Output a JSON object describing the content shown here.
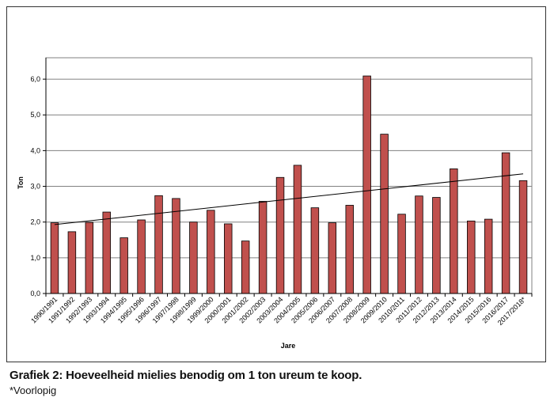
{
  "caption": "Grafiek 2: Hoeveelheid mielies benodig om 1 ton ureum te koop.",
  "note": "*Voorlopig",
  "chart_data": {
    "type": "bar",
    "xlabel": "Jare",
    "ylabel": "Ton",
    "ylim": [
      0,
      6.6
    ],
    "yticks": [
      0,
      1,
      2,
      3,
      4,
      5,
      6
    ],
    "yticklabels": [
      "0,0",
      "1,0",
      "2,0",
      "3,0",
      "4,0",
      "5,0",
      "6,0"
    ],
    "grid": true,
    "categories": [
      "1990/1991",
      "1991/1992",
      "1992/1993",
      "1993/1994",
      "1994/1995",
      "1995/1996",
      "1996/1997",
      "1997/1998",
      "1998/1999",
      "1999/2000",
      "2000/2001",
      "2001/2002",
      "2002/2003",
      "2003/2004",
      "2004/2005",
      "2005/2006",
      "2006/2007",
      "2007/2008",
      "2008/2009",
      "2009/2010",
      "2010/2011",
      "2011/2012",
      "2012/2013",
      "2013/2014",
      "2014/2015",
      "2015/2016",
      "2016/2017",
      "2017/2018*"
    ],
    "values": [
      1.98,
      1.73,
      1.99,
      2.28,
      1.56,
      2.06,
      2.74,
      2.66,
      2.0,
      2.33,
      1.95,
      1.47,
      2.58,
      3.25,
      3.59,
      2.4,
      1.98,
      2.47,
      6.09,
      4.46,
      2.22,
      2.73,
      2.69,
      3.49,
      2.03,
      2.08,
      3.94,
      3.16
    ],
    "trendline": {
      "type": "linear",
      "start": 1.93,
      "end": 3.35
    },
    "colors": {
      "bar": "#c0504d",
      "bar_edge": "#000000",
      "trend": "#000000",
      "grid": "#808080"
    }
  }
}
